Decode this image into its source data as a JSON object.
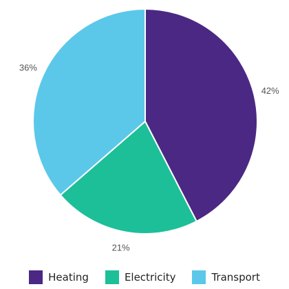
{
  "chart_data": {
    "type": "pie",
    "title": "",
    "start_angle_deg": 0,
    "direction": "clockwise",
    "slices": [
      {
        "label": "Heating",
        "value": 42,
        "display": "42%",
        "color": "#4b2884"
      },
      {
        "label": "Electricity",
        "value": 21,
        "display": "21%",
        "color": "#1dbf98"
      },
      {
        "label": "Transport",
        "value": 36,
        "display": "36%",
        "color": "#5bc8ea"
      }
    ],
    "slice_border_color": "#ffffff",
    "legend_position": "bottom",
    "label_placement": "outside"
  }
}
